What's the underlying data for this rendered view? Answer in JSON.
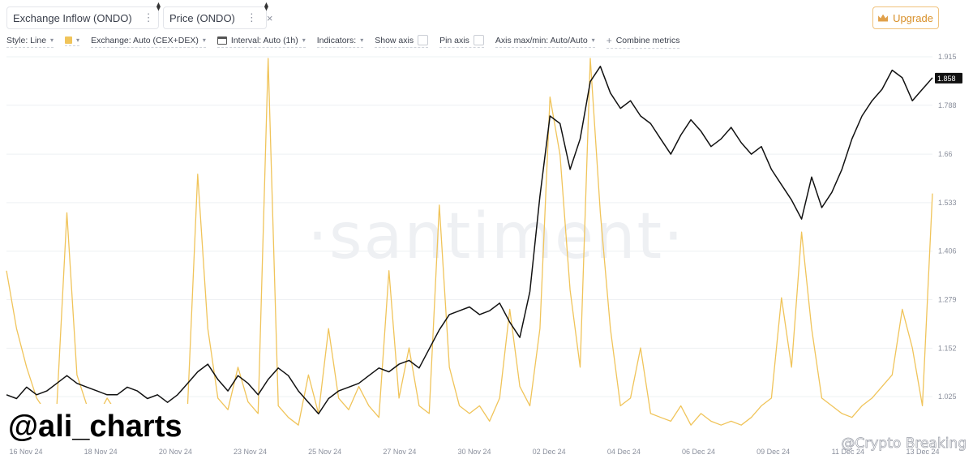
{
  "tabs": [
    {
      "label": "Exchange Inflow (ONDO)",
      "color": "#f0c45a"
    },
    {
      "label": "Price (ONDO)",
      "color": "#111111"
    }
  ],
  "tab_menu_glyph": "⋮",
  "tab_close_glyph": "×",
  "tab_badge_glyph": "⧫",
  "upgrade_label": "Upgrade",
  "toolbar": {
    "style": "Style: Line",
    "exchange": "Exchange: Auto (CEX+DEX)",
    "interval": "Interval: Auto (1h)",
    "indicators": "Indicators:",
    "show_axis": "Show axis",
    "pin_axis": "Pin axis",
    "axis_maxmin": "Axis max/min: Auto/Auto",
    "combine": "Combine metrics"
  },
  "watermark_text": "·santiment·",
  "overlay_handle": "@ali_charts",
  "overlay_credit": "@Crypto Breaking",
  "colors": {
    "inflow": "#f0c45a",
    "price": "#111111",
    "grid": "#eef0f3",
    "axis_text": "#8a8f9c"
  },
  "chart_data": {
    "type": "line",
    "title": "",
    "x_ticks": [
      "16 Nov 24",
      "18 Nov 24",
      "20 Nov 24",
      "23 Nov 24",
      "25 Nov 24",
      "27 Nov 24",
      "30 Nov 24",
      "02 Dec 24",
      "04 Dec 24",
      "06 Dec 24",
      "09 Dec 24",
      "11 Dec 24",
      "13 Dec 24"
    ],
    "y_ticks": [
      "1.915",
      "1.788",
      "1.66",
      "1.533",
      "1.406",
      "1.279",
      "1.152",
      "1.025"
    ],
    "ylim": [
      0.9,
      1.915
    ],
    "last_price": "1.858",
    "series": [
      {
        "name": "Price (ONDO)",
        "axis": "right",
        "x": [
          0,
          0.3,
          0.6,
          0.9,
          1.2,
          1.5,
          1.8,
          2.1,
          2.4,
          2.7,
          3.0,
          3.3,
          3.6,
          3.9,
          4.2,
          4.5,
          4.8,
          5.1,
          5.4,
          5.7,
          6.0,
          6.3,
          6.6,
          6.9,
          7.2,
          7.5,
          7.8,
          8.1,
          8.4,
          8.7,
          9.0,
          9.3,
          9.6,
          9.9,
          10.2,
          10.5,
          10.8,
          11.1,
          11.4,
          11.7,
          12.0,
          12.3,
          12.6,
          12.9,
          13.2,
          13.5,
          13.8,
          14.1,
          14.4,
          14.7,
          15.0,
          15.3,
          15.6,
          15.9,
          16.2,
          16.5,
          16.8,
          17.1,
          17.4,
          17.7,
          18.0,
          18.3,
          18.6,
          18.9,
          19.2,
          19.5,
          19.8,
          20.1,
          20.4,
          20.7,
          21.0,
          21.3,
          21.6,
          21.9,
          22.2,
          22.5,
          22.8,
          23.1,
          23.4,
          23.7,
          24.0,
          24.3,
          24.6,
          24.9,
          25.2,
          25.5,
          25.8,
          26.1,
          26.4,
          26.7,
          27.0,
          27.3,
          27.6
        ],
        "values": [
          1.03,
          1.02,
          1.05,
          1.03,
          1.04,
          1.06,
          1.08,
          1.06,
          1.05,
          1.04,
          1.03,
          1.03,
          1.05,
          1.04,
          1.02,
          1.03,
          1.01,
          1.03,
          1.06,
          1.09,
          1.11,
          1.07,
          1.04,
          1.08,
          1.06,
          1.03,
          1.07,
          1.1,
          1.08,
          1.04,
          1.01,
          0.98,
          1.02,
          1.04,
          1.05,
          1.06,
          1.08,
          1.1,
          1.09,
          1.11,
          1.12,
          1.1,
          1.15,
          1.2,
          1.24,
          1.25,
          1.26,
          1.24,
          1.25,
          1.27,
          1.22,
          1.18,
          1.3,
          1.55,
          1.76,
          1.74,
          1.62,
          1.7,
          1.85,
          1.89,
          1.82,
          1.78,
          1.8,
          1.76,
          1.74,
          1.7,
          1.66,
          1.71,
          1.75,
          1.72,
          1.68,
          1.7,
          1.73,
          1.69,
          1.66,
          1.68,
          1.62,
          1.58,
          1.54,
          1.49,
          1.6,
          1.52,
          1.56,
          1.62,
          1.7,
          1.76,
          1.8,
          1.83,
          1.88,
          1.86,
          1.8,
          1.83,
          1.86
        ]
      },
      {
        "name": "Exchange Inflow (ONDO)",
        "axis": "hidden",
        "x": [
          0,
          0.3,
          0.6,
          0.9,
          1.2,
          1.5,
          1.8,
          2.1,
          2.4,
          2.7,
          3.0,
          3.3,
          3.6,
          3.9,
          4.2,
          4.5,
          4.8,
          5.1,
          5.4,
          5.7,
          6.0,
          6.3,
          6.6,
          6.9,
          7.2,
          7.5,
          7.8,
          8.1,
          8.4,
          8.7,
          9.0,
          9.3,
          9.6,
          9.9,
          10.2,
          10.5,
          10.8,
          11.1,
          11.4,
          11.7,
          12.0,
          12.3,
          12.6,
          12.9,
          13.2,
          13.5,
          13.8,
          14.1,
          14.4,
          14.7,
          15.0,
          15.3,
          15.6,
          15.9,
          16.2,
          16.5,
          16.8,
          17.1,
          17.4,
          17.7,
          18.0,
          18.3,
          18.6,
          18.9,
          19.2,
          19.5,
          19.8,
          20.1,
          20.4,
          20.7,
          21.0,
          21.3,
          21.6,
          21.9,
          22.2,
          22.5,
          22.8,
          23.1,
          23.4,
          23.7,
          24.0,
          24.3,
          24.6,
          24.9,
          25.2,
          25.5,
          25.8,
          26.1,
          26.4,
          26.7,
          27.0,
          27.3,
          27.6
        ],
        "values": [
          0.45,
          0.3,
          0.2,
          0.12,
          0.08,
          0.1,
          0.6,
          0.18,
          0.1,
          0.07,
          0.12,
          0.08,
          0.06,
          0.09,
          0.05,
          0.07,
          0.06,
          0.04,
          0.1,
          0.7,
          0.3,
          0.12,
          0.09,
          0.2,
          0.11,
          0.08,
          1.0,
          0.1,
          0.07,
          0.05,
          0.18,
          0.08,
          0.3,
          0.12,
          0.09,
          0.15,
          0.1,
          0.07,
          0.45,
          0.12,
          0.25,
          0.1,
          0.08,
          0.62,
          0.2,
          0.1,
          0.08,
          0.1,
          0.06,
          0.12,
          0.35,
          0.15,
          0.1,
          0.3,
          0.9,
          0.75,
          0.4,
          0.2,
          1.0,
          0.6,
          0.3,
          0.1,
          0.12,
          0.25,
          0.08,
          0.07,
          0.06,
          0.1,
          0.05,
          0.08,
          0.06,
          0.05,
          0.06,
          0.05,
          0.07,
          0.1,
          0.12,
          0.38,
          0.2,
          0.55,
          0.3,
          0.12,
          0.1,
          0.08,
          0.07,
          0.1,
          0.12,
          0.15,
          0.18,
          0.35,
          0.25,
          0.1,
          0.65
        ]
      }
    ]
  }
}
